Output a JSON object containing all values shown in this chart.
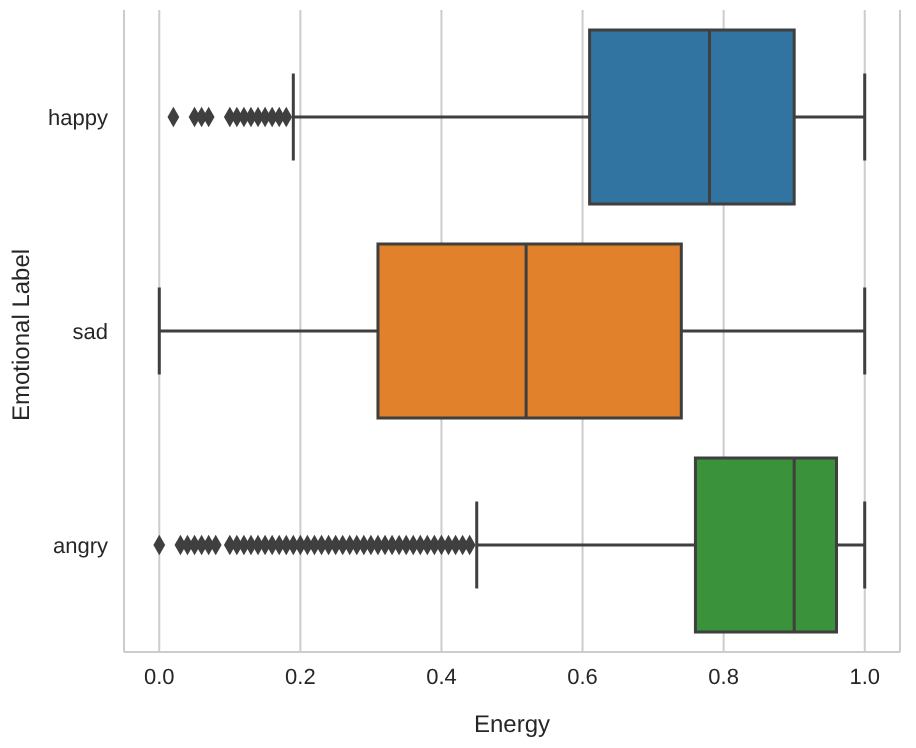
{
  "chart_data": {
    "type": "box",
    "orientation": "horizontal",
    "xlabel": "Energy",
    "ylabel": "Emotional Label",
    "categories": [
      "happy",
      "sad",
      "angry"
    ],
    "colors": [
      "#3274a1",
      "#e1812c",
      "#3a923a"
    ],
    "boxes": [
      {
        "low": 0.19,
        "q1": 0.61,
        "median": 0.78,
        "q3": 0.9,
        "high": 1.0,
        "outliers": [
          0.02,
          0.05,
          0.06,
          0.07,
          0.1,
          0.11,
          0.12,
          0.13,
          0.14,
          0.15,
          0.16,
          0.17,
          0.18
        ]
      },
      {
        "low": 0.0,
        "q1": 0.31,
        "median": 0.52,
        "q3": 0.74,
        "high": 1.0
      },
      {
        "low": 0.45,
        "q1": 0.76,
        "median": 0.9,
        "q3": 0.96,
        "high": 1.0,
        "outliers": [
          0.0,
          0.03,
          0.04,
          0.05,
          0.06,
          0.07,
          0.08,
          0.1,
          0.11,
          0.12,
          0.13,
          0.14,
          0.15,
          0.16,
          0.17,
          0.18,
          0.19,
          0.2,
          0.21,
          0.22,
          0.23,
          0.24,
          0.25,
          0.26,
          0.27,
          0.28,
          0.29,
          0.3,
          0.31,
          0.32,
          0.33,
          0.34,
          0.35,
          0.36,
          0.37,
          0.38,
          0.39,
          0.4,
          0.41,
          0.42,
          0.43,
          0.44
        ]
      }
    ],
    "xlim": [
      -0.05,
      1.05
    ],
    "xticks": [
      {
        "value": 0,
        "label": "0.0"
      },
      0.2,
      0.4,
      0.6,
      0.8,
      {
        "value": 1,
        "label": "1.0"
      }
    ],
    "grid": "x",
    "marker": "diamond"
  }
}
